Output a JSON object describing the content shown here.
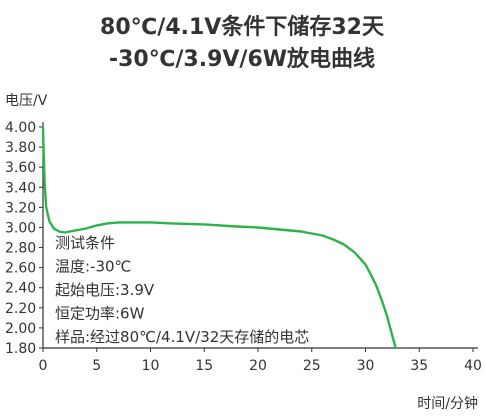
{
  "chart_data": {
    "type": "line",
    "title_lines": [
      "80℃/4.1V条件下储存32天",
      "-30℃/3.9V/6W放电曲线"
    ],
    "xlabel": "时间/分钟",
    "ylabel": "电压/V",
    "xlim": [
      0,
      40
    ],
    "ylim": [
      1.8,
      4.0
    ],
    "x_ticks": [
      0,
      5,
      10,
      15,
      20,
      25,
      30,
      35,
      40
    ],
    "y_ticks": [
      "4.00",
      "3.80",
      "3.60",
      "3.40",
      "3.20",
      "3.00",
      "2.80",
      "2.60",
      "2.40",
      "2.20",
      "2.00",
      "1.80"
    ],
    "grid": false,
    "series": [
      {
        "color": "#2db34a",
        "x": [
          0,
          0.05,
          0.15,
          0.3,
          0.6,
          1.0,
          1.5,
          2.0,
          3.0,
          4.0,
          5.0,
          6.0,
          7.0,
          8.0,
          10.0,
          12.0,
          15.0,
          18.0,
          20.0,
          22.0,
          24.0,
          26.0,
          27.0,
          28.0,
          29.0,
          30.0,
          30.5,
          31.0,
          31.5,
          32.0,
          32.3,
          32.6,
          32.8
        ],
        "y": [
          3.99,
          3.8,
          3.45,
          3.2,
          3.06,
          2.99,
          2.96,
          2.95,
          2.97,
          2.99,
          3.02,
          3.04,
          3.05,
          3.05,
          3.05,
          3.04,
          3.03,
          3.01,
          3.0,
          2.98,
          2.96,
          2.92,
          2.88,
          2.83,
          2.75,
          2.63,
          2.53,
          2.42,
          2.28,
          2.12,
          2.0,
          1.88,
          1.8
        ]
      }
    ],
    "annotations": [
      "测试条件",
      "温度:-30℃",
      "起始电压:3.9V",
      "恒定功率:6W",
      "样品:经过80℃/4.1V/32天存储的电芯"
    ]
  },
  "colors": {
    "axis": "#333333",
    "line": "#2db34a"
  }
}
